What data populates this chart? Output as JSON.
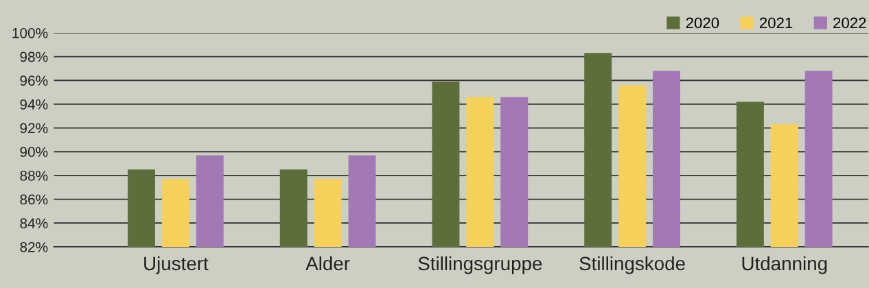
{
  "chart_data": {
    "type": "bar",
    "categories": [
      "Ujustert",
      "Alder",
      "Stillingsgruppe",
      "Stillingskode",
      "Utdanning"
    ],
    "series": [
      {
        "name": "2020",
        "color": "#5d6e3a",
        "values": [
          88.5,
          88.5,
          95.9,
          98.3,
          94.2
        ]
      },
      {
        "name": "2021",
        "color": "#f5d15a",
        "values": [
          87.7,
          87.7,
          94.6,
          95.6,
          92.3
        ]
      },
      {
        "name": "2022",
        "color": "#a379b5",
        "values": [
          89.7,
          89.7,
          94.6,
          96.8,
          96.8
        ]
      }
    ],
    "ylim": [
      82,
      100
    ],
    "yticks": [
      {
        "value": 82,
        "label": "82%"
      },
      {
        "value": 84,
        "label": "84%"
      },
      {
        "value": 86,
        "label": "86%"
      },
      {
        "value": 88,
        "label": "88%"
      },
      {
        "value": 90,
        "label": "90%"
      },
      {
        "value": 92,
        "label": "92%"
      },
      {
        "value": 94,
        "label": "94%"
      },
      {
        "value": 96,
        "label": "96%"
      },
      {
        "value": 98,
        "label": "98%"
      },
      {
        "value": 100,
        "label": "100%"
      }
    ],
    "grid": "y",
    "legend": "top right"
  }
}
